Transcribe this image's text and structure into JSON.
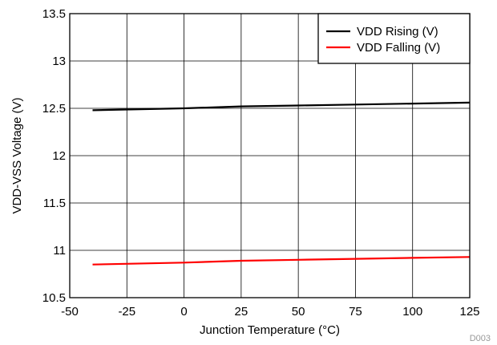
{
  "chart_data": {
    "type": "line",
    "title": "",
    "xlabel": "Junction Temperature (°C)",
    "ylabel": "VDD-VSS Voltage (V)",
    "xlim": [
      -50,
      125
    ],
    "ylim": [
      10.5,
      13.5
    ],
    "x_ticks": [
      -50,
      -25,
      0,
      25,
      50,
      75,
      100,
      125
    ],
    "y_ticks": [
      10.5,
      11,
      11.5,
      12,
      12.5,
      13,
      13.5
    ],
    "x_tick_labels": [
      "-50",
      "-25",
      "0",
      "25",
      "50",
      "75",
      "100",
      "125"
    ],
    "y_tick_labels": [
      "10.5",
      "11",
      "11.5",
      "12",
      "12.5",
      "13",
      "13.5"
    ],
    "grid": true,
    "legend_position": "top-right",
    "series": [
      {
        "name": "VDD Rising (V)",
        "color": "#000000",
        "x": [
          -40,
          0,
          25,
          50,
          75,
          100,
          125
        ],
        "y": [
          12.48,
          12.5,
          12.52,
          12.53,
          12.54,
          12.55,
          12.56
        ]
      },
      {
        "name": "VDD Falling (V)",
        "color": "#ff0000",
        "x": [
          -40,
          0,
          25,
          50,
          75,
          100,
          125
        ],
        "y": [
          10.85,
          10.87,
          10.89,
          10.9,
          10.91,
          10.92,
          10.93
        ]
      }
    ]
  },
  "figure_id": "D003"
}
